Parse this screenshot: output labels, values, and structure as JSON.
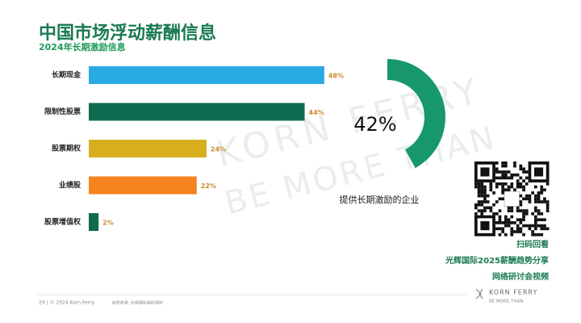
{
  "header": {
    "title": "中国市场浮动薪酬信息",
    "subtitle": "2024年长期激励信息"
  },
  "chart_data": [
    {
      "type": "bar",
      "orientation": "horizontal",
      "categories": [
        "长期现金",
        "限制性股票",
        "股票期权",
        "业绩股",
        "股票增值权"
      ],
      "values": [
        48,
        44,
        24,
        22,
        2
      ],
      "value_labels": [
        "48%",
        "44%",
        "24%",
        "22%",
        "2%"
      ],
      "colors": [
        "#29aae2",
        "#0e6b4f",
        "#d6ae1e",
        "#f5821f",
        "#0e6b4f"
      ],
      "xlim": [
        0,
        100
      ]
    },
    {
      "type": "donut",
      "values": [
        42
      ],
      "value_labels": [
        "42%"
      ],
      "color": "#16986b",
      "caption": "提供长期激励的企业"
    }
  ],
  "qr_captions": [
    "扫码回看",
    "光辉国际2025薪酬趋势分享",
    "网络研讨会视频"
  ],
  "watermark": {
    "brand": "KORN FERRY",
    "tagline": "BE MORE THAN"
  },
  "footer": {
    "page": "29 | © 2024 Korn Ferry",
    "source": "信息来源: 光辉国际福利调研",
    "logo": "KORN FERRY",
    "logo_tagline": "BE MORE THAN"
  }
}
